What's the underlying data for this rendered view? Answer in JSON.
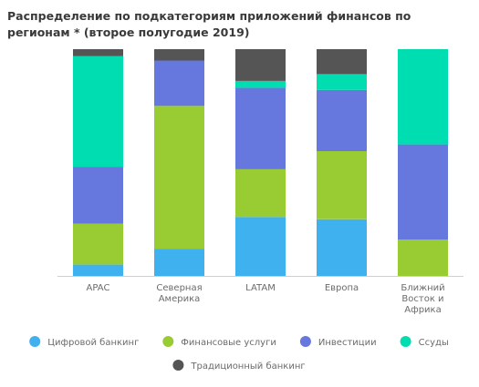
{
  "chart_data": {
    "type": "bar",
    "stacked": true,
    "percent": true,
    "title": "Распределение по подкатегориям приложений финансов по регионам * (второе полугодие 2019)",
    "categories": [
      "APAC",
      "Северная Америка",
      "LATAM",
      "Европа",
      "Ближний Восток и Африка"
    ],
    "series": [
      {
        "name": "Цифровой банкинг",
        "color": "#3fb1ef",
        "values": [
          5,
          12,
          26,
          25,
          0
        ]
      },
      {
        "name": "Финансовые услуги",
        "color": "#99cc33",
        "values": [
          18,
          63,
          21,
          30,
          16
        ]
      },
      {
        "name": "Инвестиции",
        "color": "#6677dd",
        "values": [
          25,
          20,
          36,
          27,
          42
        ]
      },
      {
        "name": "Ссуды",
        "color": "#00ddb0",
        "values": [
          49,
          0,
          3,
          7,
          42
        ]
      },
      {
        "name": "Традиционный банкинг",
        "color": "#555555",
        "values": [
          3,
          5,
          14,
          11,
          0
        ]
      }
    ],
    "ylim": [
      0,
      100
    ],
    "grid": false,
    "legend_position": "bottom"
  }
}
